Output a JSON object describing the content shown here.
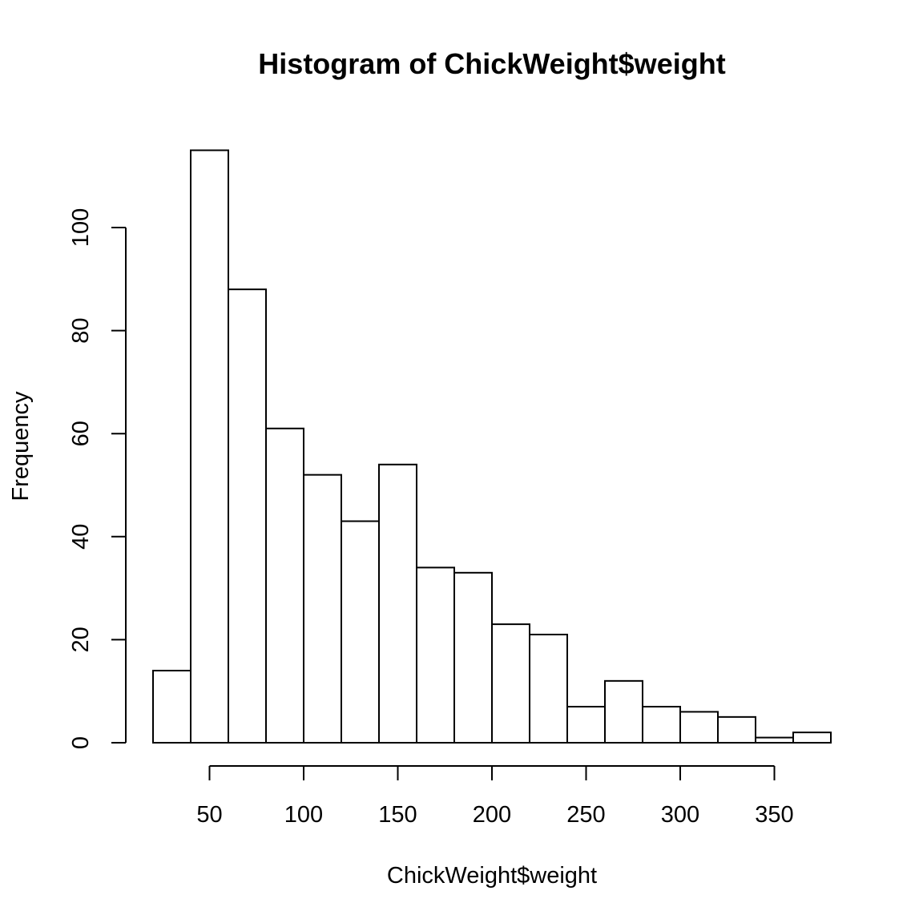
{
  "chart_data": {
    "type": "bar",
    "title": "Histogram of ChickWeight$weight",
    "xlabel": "ChickWeight$weight",
    "ylabel": "Frequency",
    "bin_edges": [
      20,
      40,
      60,
      80,
      100,
      120,
      140,
      160,
      180,
      200,
      220,
      240,
      260,
      280,
      300,
      320,
      340,
      360,
      380
    ],
    "values": [
      14,
      115,
      88,
      61,
      52,
      43,
      54,
      34,
      33,
      23,
      21,
      7,
      12,
      7,
      6,
      5,
      1,
      2
    ],
    "xlim": [
      20,
      380
    ],
    "ylim": [
      0,
      115
    ],
    "x_ticks": [
      50,
      100,
      150,
      200,
      250,
      300,
      350
    ],
    "y_ticks": [
      0,
      20,
      40,
      60,
      80,
      100
    ],
    "grid": false,
    "legend": "none",
    "colors": {
      "bar_fill": "#ffffff",
      "bar_stroke": "#000000"
    }
  }
}
